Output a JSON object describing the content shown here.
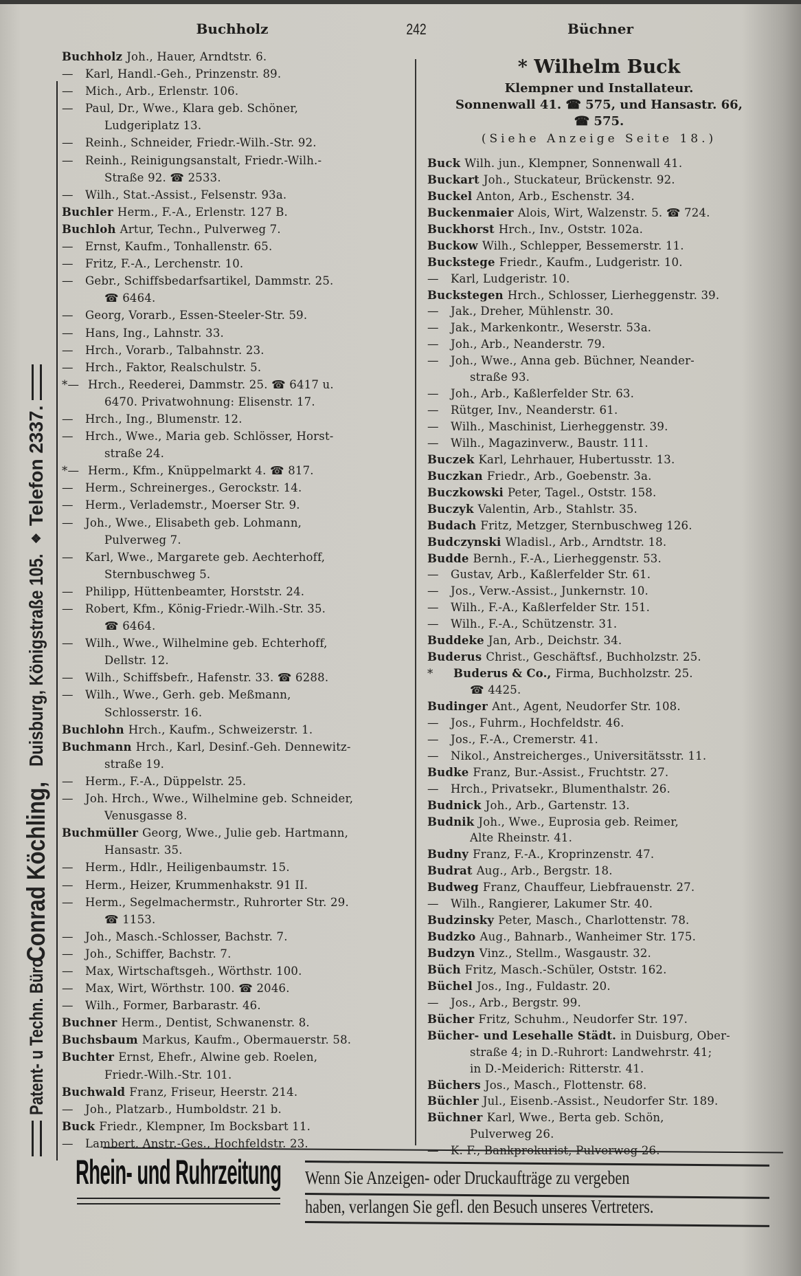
{
  "side_banner": {
    "part1": "Patent- u Techn. Büro",
    "part2": "Conrad Köchling,",
    "part3": "Duisburg, Königstraße 105.",
    "separator": "❖",
    "part4": "Telefon 2337."
  },
  "header": {
    "left_word": "Buchholz",
    "page_number": "242",
    "right_word": "Büchner"
  },
  "advertisement": {
    "name": "* Wilhelm Buck",
    "trade": "Klempner und Installateur.",
    "address_line1": "Sonnenwall 41. ☎ 575, und Hansastr. 66,",
    "address_line2": "☎ 575.",
    "reference": "(Siehe Anzeige Seite 18.)"
  },
  "left_column": [
    {
      "prefix": "",
      "name": "Buchholz",
      "text": "Joh., Hauer, Arndtstr. 6."
    },
    {
      "prefix": "—",
      "name": "",
      "text": "Karl, Handl.-Geh., Prinzenstr. 89."
    },
    {
      "prefix": "—",
      "name": "",
      "text": "Mich., Arb., Erlenstr. 106."
    },
    {
      "prefix": "—",
      "name": "",
      "text": "Paul, Dr., Wwe., Klara geb. Schöner,",
      "cont": [
        "Ludgeriplatz 13."
      ]
    },
    {
      "prefix": "—",
      "name": "",
      "text": "Reinh., Schneider, Friedr.-Wilh.-Str. 92."
    },
    {
      "prefix": "—",
      "name": "",
      "text": "Reinh., Reinigungsanstalt, Friedr.-Wilh.-",
      "cont": [
        "Straße 92. ☎ 2533."
      ]
    },
    {
      "prefix": "—",
      "name": "",
      "text": "Wilh., Stat.-Assist., Felsenstr. 93a."
    },
    {
      "prefix": "",
      "name": "Buchler",
      "text": "Herm., F.-A., Erlenstr. 127 B."
    },
    {
      "prefix": "",
      "name": "Buchloh",
      "text": "Artur, Techn., Pulverweg 7."
    },
    {
      "prefix": "—",
      "name": "",
      "text": "Ernst, Kaufm., Tonhallenstr. 65."
    },
    {
      "prefix": "—",
      "name": "",
      "text": "Fritz, F.-A., Lerchenstr. 10."
    },
    {
      "prefix": "—",
      "name": "",
      "text": "Gebr., Schiffsbedarfsartikel, Dammstr. 25.",
      "cont": [
        "☎ 6464."
      ]
    },
    {
      "prefix": "—",
      "name": "",
      "text": "Georg, Vorarb., Essen-Steeler-Str. 59."
    },
    {
      "prefix": "—",
      "name": "",
      "text": "Hans, Ing., Lahnstr. 33."
    },
    {
      "prefix": "—",
      "name": "",
      "text": "Hrch., Vorarb., Talbahnstr. 23."
    },
    {
      "prefix": "—",
      "name": "",
      "text": "Hrch., Faktor, Realschulstr. 5."
    },
    {
      "prefix": "*—",
      "name": "",
      "text": "Hrch., Reederei, Dammstr. 25. ☎ 6417 u.",
      "cont": [
        "6470. Privatwohnung: Elisenstr. 17."
      ]
    },
    {
      "prefix": "—",
      "name": "",
      "text": "Hrch., Ing., Blumenstr. 12."
    },
    {
      "prefix": "—",
      "name": "",
      "text": "Hrch., Wwe., Maria geb. Schlösser, Horst-",
      "cont": [
        "straße 24."
      ]
    },
    {
      "prefix": "*—",
      "name": "",
      "text": "Herm., Kfm., Knüppelmarkt 4. ☎ 817."
    },
    {
      "prefix": "—",
      "name": "",
      "text": "Herm., Schreinerges., Gerockstr. 14."
    },
    {
      "prefix": "—",
      "name": "",
      "text": "Herm., Verlademstr., Moerser Str. 9."
    },
    {
      "prefix": "—",
      "name": "",
      "text": "Joh., Wwe., Elisabeth geb. Lohmann,",
      "cont": [
        "Pulverweg 7."
      ]
    },
    {
      "prefix": "—",
      "name": "",
      "text": "Karl, Wwe., Margarete geb. Aechterhoff,",
      "cont": [
        "Sternbuschweg 5."
      ]
    },
    {
      "prefix": "—",
      "name": "",
      "text": "Philipp, Hüttenbeamter, Horststr. 24."
    },
    {
      "prefix": "—",
      "name": "",
      "text": "Robert, Kfm., König-Friedr.-Wilh.-Str. 35.",
      "cont": [
        "☎ 6464."
      ]
    },
    {
      "prefix": "—",
      "name": "",
      "text": "Wilh., Wwe., Wilhelmine geb. Echterhoff,",
      "cont": [
        "Dellstr. 12."
      ]
    },
    {
      "prefix": "—",
      "name": "",
      "text": "Wilh., Schiffsbefr., Hafenstr. 33. ☎ 6288."
    },
    {
      "prefix": "—",
      "name": "",
      "text": "Wilh., Wwe., Gerh. geb. Meßmann,",
      "cont": [
        "Schlosserstr. 16."
      ]
    },
    {
      "prefix": "",
      "name": "Buchlohn",
      "text": "Hrch., Kaufm., Schweizerstr. 1."
    },
    {
      "prefix": "",
      "name": "Buchmann",
      "text": "Hrch., Karl, Desinf.-Geh. Dennewitz-",
      "cont": [
        "straße 19."
      ]
    },
    {
      "prefix": "—",
      "name": "",
      "text": "Herm., F.-A., Düppelstr. 25."
    },
    {
      "prefix": "—",
      "name": "",
      "text": "Joh. Hrch., Wwe., Wilhelmine geb. Schneider,",
      "cont": [
        "Venusgasse 8."
      ]
    },
    {
      "prefix": "",
      "name": "Buchmüller",
      "text": "Georg, Wwe., Julie geb. Hartmann,",
      "cont": [
        "Hansastr. 35."
      ]
    },
    {
      "prefix": "—",
      "name": "",
      "text": "Herm., Hdlr., Heiligenbaumstr. 15."
    },
    {
      "prefix": "—",
      "name": "",
      "text": "Herm., Heizer, Krummenhakstr. 91 II."
    },
    {
      "prefix": "—",
      "name": "",
      "text": "Herm., Segelmachermstr., Ruhrorter Str. 29.",
      "cont": [
        "☎ 1153."
      ]
    },
    {
      "prefix": "—",
      "name": "",
      "text": "Joh., Masch.-Schlosser, Bachstr. 7."
    },
    {
      "prefix": "—",
      "name": "",
      "text": "Joh., Schiffer, Bachstr. 7."
    },
    {
      "prefix": "—",
      "name": "",
      "text": "Max, Wirtschaftsgeh., Wörthstr. 100."
    },
    {
      "prefix": "—",
      "name": "",
      "text": "Max, Wirt, Wörthstr. 100. ☎ 2046."
    },
    {
      "prefix": "—",
      "name": "",
      "text": "Wilh., Former, Barbarastr. 46."
    },
    {
      "prefix": "",
      "name": "Buchner",
      "text": "Herm., Dentist, Schwanenstr. 8."
    },
    {
      "prefix": "",
      "name": "Buchsbaum",
      "text": "Markus, Kaufm., Obermauerstr. 58."
    },
    {
      "prefix": "",
      "name": "Buchter",
      "text": "Ernst, Ehefr., Alwine geb. Roelen,",
      "cont": [
        "Friedr.-Wilh.-Str. 101."
      ]
    },
    {
      "prefix": "",
      "name": "Buchwald",
      "text": "Franz, Friseur, Heerstr. 214."
    },
    {
      "prefix": "—",
      "name": "",
      "text": "Joh., Platzarb., Humboldstr. 21 b."
    },
    {
      "prefix": "",
      "name": "Buck",
      "text": "Friedr., Klempner, Im Bocksbart 11."
    },
    {
      "prefix": "—",
      "name": "",
      "text": "Lambert, Anstr.-Ges., Hochfeldstr. 23."
    }
  ],
  "right_column": [
    {
      "prefix": "",
      "name": "Buck",
      "text": "Wilh. jun., Klempner, Sonnenwall 41."
    },
    {
      "prefix": "",
      "name": "Buckart",
      "text": "Joh., Stuckateur, Brückenstr. 92."
    },
    {
      "prefix": "",
      "name": "Buckel",
      "text": "Anton, Arb., Eschenstr. 34."
    },
    {
      "prefix": "",
      "name": "Buckenmaier",
      "text": "Alois, Wirt, Walzenstr. 5. ☎ 724."
    },
    {
      "prefix": "",
      "name": "Buckhorst",
      "text": "Hrch., Inv., Oststr. 102a."
    },
    {
      "prefix": "",
      "name": "Buckow",
      "text": "Wilh., Schlepper, Bessemerstr. 11."
    },
    {
      "prefix": "",
      "name": "Buckstege",
      "text": "Friedr., Kaufm., Ludgeristr. 10."
    },
    {
      "prefix": "—",
      "name": "",
      "text": "Karl, Ludgeristr. 10."
    },
    {
      "prefix": "",
      "name": "Buckstegen",
      "text": "Hrch., Schlosser, Lierheggenstr. 39."
    },
    {
      "prefix": "—",
      "name": "",
      "text": "Jak., Dreher, Mühlenstr. 30."
    },
    {
      "prefix": "—",
      "name": "",
      "text": "Jak., Markenkontr., Weserstr. 53a."
    },
    {
      "prefix": "—",
      "name": "",
      "text": "Joh., Arb., Neanderstr. 79."
    },
    {
      "prefix": "—",
      "name": "",
      "text": "Joh., Wwe., Anna geb. Büchner, Neander-",
      "cont": [
        "straße 93."
      ]
    },
    {
      "prefix": "—",
      "name": "",
      "text": "Joh., Arb., Kaßlerfelder Str. 63."
    },
    {
      "prefix": "—",
      "name": "",
      "text": "Rütger, Inv., Neanderstr. 61."
    },
    {
      "prefix": "—",
      "name": "",
      "text": "Wilh., Maschinist, Lierheggenstr. 39."
    },
    {
      "prefix": "—",
      "name": "",
      "text": "Wilh., Magazinverw., Baustr. 111."
    },
    {
      "prefix": "",
      "name": "Buczek",
      "text": "Karl, Lehrhauer, Hubertusstr. 13."
    },
    {
      "prefix": "",
      "name": "Buczkan",
      "text": "Friedr., Arb., Goebenstr. 3a."
    },
    {
      "prefix": "",
      "name": "Buczkowski",
      "text": "Peter, Tagel., Oststr. 158."
    },
    {
      "prefix": "",
      "name": "Buczyk",
      "text": "Valentin, Arb., Stahlstr. 35."
    },
    {
      "prefix": "",
      "name": "Budach",
      "text": "Fritz, Metzger, Sternbuschweg 126."
    },
    {
      "prefix": "",
      "name": "Budczynski",
      "text": "Wladisl., Arb., Arndtstr. 18."
    },
    {
      "prefix": "",
      "name": "Budde",
      "text": "Bernh., F.-A., Lierheggenstr. 53."
    },
    {
      "prefix": "—",
      "name": "",
      "text": "Gustav, Arb., Kaßlerfelder Str. 61."
    },
    {
      "prefix": "—",
      "name": "",
      "text": "Jos., Verw.-Assist., Junkernstr. 10."
    },
    {
      "prefix": "—",
      "name": "",
      "text": "Wilh., F.-A., Kaßlerfelder Str. 151."
    },
    {
      "prefix": "—",
      "name": "",
      "text": "Wilh., F.-A., Schützenstr. 31."
    },
    {
      "prefix": "",
      "name": "Buddeke",
      "text": "Jan, Arb., Deichstr. 34."
    },
    {
      "prefix": "",
      "name": "Buderus",
      "text": "Christ., Geschäftsf., Buchholzstr. 25."
    },
    {
      "prefix": "*",
      "name": "Buderus & Co.,",
      "text": "Firma, Buchholzstr. 25.",
      "cont": [
        "☎ 4425."
      ]
    },
    {
      "prefix": "",
      "name": "Budinger",
      "text": "Ant., Agent, Neudorfer Str. 108."
    },
    {
      "prefix": "—",
      "name": "",
      "text": "Jos., Fuhrm., Hochfeldstr. 46."
    },
    {
      "prefix": "—",
      "name": "",
      "text": "Jos., F.-A., Cremerstr. 41."
    },
    {
      "prefix": "—",
      "name": "",
      "text": "Nikol., Anstreicherges., Universitätsstr. 11."
    },
    {
      "prefix": "",
      "name": "Budke",
      "text": "Franz, Bur.-Assist., Fruchtstr. 27."
    },
    {
      "prefix": "—",
      "name": "",
      "text": "Hrch., Privatsekr., Blumenthalstr. 26."
    },
    {
      "prefix": "",
      "name": "Budnick",
      "text": "Joh., Arb., Gartenstr. 13."
    },
    {
      "prefix": "",
      "name": "Budnik",
      "text": "Joh., Wwe., Euprosia geb. Reimer,",
      "cont": [
        "Alte Rheinstr. 41."
      ]
    },
    {
      "prefix": "",
      "name": "Budny",
      "text": "Franz, F.-A., Kroprinzenstr. 47."
    },
    {
      "prefix": "",
      "name": "Budrat",
      "text": "Aug., Arb., Bergstr. 18."
    },
    {
      "prefix": "",
      "name": "Budweg",
      "text": "Franz, Chauffeur, Liebfrauenstr. 27."
    },
    {
      "prefix": "—",
      "name": "",
      "text": "Wilh., Rangierer, Lakumer Str. 40."
    },
    {
      "prefix": "",
      "name": "Budzinsky",
      "text": "Peter, Masch., Charlottenstr. 78."
    },
    {
      "prefix": "",
      "name": "Budzko",
      "text": "Aug., Bahnarb., Wanheimer Str. 175."
    },
    {
      "prefix": "",
      "name": "Budzyn",
      "text": "Vinz., Stellm., Wasgaustr. 32."
    },
    {
      "prefix": "",
      "name": "Büch",
      "text": "Fritz, Masch.-Schüler, Oststr. 162."
    },
    {
      "prefix": "",
      "name": "Büchel",
      "text": "Jos., Ing., Fuldastr. 20."
    },
    {
      "prefix": "—",
      "name": "",
      "text": "Jos., Arb., Bergstr. 99."
    },
    {
      "prefix": "",
      "name": "Bücher",
      "text": "Fritz, Schuhm., Neudorfer Str. 197."
    },
    {
      "prefix": "",
      "name": "Bücher- und Lesehalle Städt.",
      "text": "in Duisburg, Ober-",
      "cont": [
        "straße 4; in D.-Ruhrort: Landwehrstr. 41;",
        "in D.-Meiderich: Ritterstr. 41."
      ]
    },
    {
      "prefix": "",
      "name": "Büchers",
      "text": "Jos., Masch., Flottenstr. 68."
    },
    {
      "prefix": "",
      "name": "Büchler",
      "text": "Jul., Eisenb.-Assist., Neudorfer Str. 189."
    },
    {
      "prefix": "",
      "name": "Büchner",
      "text": "Karl, Wwe., Berta geb. Schön,",
      "cont": [
        "Pulverweg 26."
      ]
    },
    {
      "prefix": "—",
      "name": "",
      "text": "K. F., Bankprokurist, Pulverweg 26."
    }
  ],
  "footer_ad": {
    "newspaper": "Rhein- und Ruhrzeitung",
    "line1": "Wenn Sie Anzeigen- oder Druckaufträge zu vergeben",
    "line2": "haben, verlangen Sie gefl. den Besuch unseres Vertreters."
  },
  "colors": {
    "paper": "#cdcbc4",
    "ink": "#1f1e1c"
  }
}
